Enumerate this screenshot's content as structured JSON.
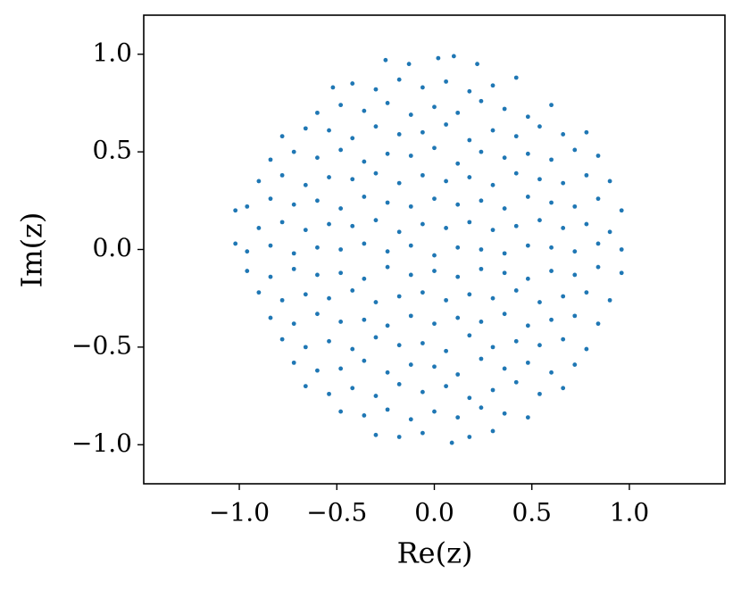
{
  "chart_data": {
    "type": "scatter",
    "x_label": "Re(z)",
    "y_label": "Im(z)",
    "color": "#1f77b4",
    "xlim": [
      -1.49,
      1.49
    ],
    "ylim": [
      -1.2,
      1.2
    ],
    "xticks": [
      {
        "value": -1.0,
        "label": "−1.0"
      },
      {
        "value": -0.5,
        "label": "−0.5"
      },
      {
        "value": 0.0,
        "label": "0.0"
      },
      0.5,
      {
        "value": 1.0,
        "label": "1.0"
      }
    ],
    "yticks": [
      {
        "value": -1.0,
        "label": "−1.0"
      },
      {
        "value": -0.5,
        "label": "−0.5"
      },
      {
        "value": 0.0,
        "label": "0.0"
      },
      0.5,
      {
        "value": 1.0,
        "label": "1.0"
      }
    ],
    "x": [
      -0.25,
      -0.13,
      0.02,
      0.1,
      0.22,
      -0.52,
      -0.42,
      -0.3,
      -0.18,
      -0.06,
      0.06,
      0.18,
      0.3,
      0.42,
      -0.6,
      -0.48,
      -0.36,
      -0.24,
      -0.12,
      0.0,
      0.12,
      0.24,
      0.36,
      0.48,
      0.6,
      -0.78,
      -0.66,
      -0.54,
      -0.42,
      -0.3,
      -0.18,
      -0.06,
      0.06,
      0.18,
      0.3,
      0.42,
      0.54,
      0.66,
      0.78,
      -0.84,
      -0.72,
      -0.6,
      -0.48,
      -0.36,
      -0.24,
      -0.12,
      0.0,
      0.12,
      0.24,
      0.36,
      0.48,
      0.6,
      0.72,
      0.84,
      -0.9,
      -0.78,
      -0.66,
      -0.54,
      -0.42,
      -0.3,
      -0.18,
      -0.06,
      0.06,
      0.18,
      0.3,
      0.42,
      0.54,
      0.66,
      0.78,
      0.9,
      -1.02,
      -0.96,
      -0.84,
      -0.72,
      -0.6,
      -0.48,
      -0.36,
      -0.24,
      -0.12,
      0.0,
      0.12,
      0.24,
      0.36,
      0.48,
      0.6,
      0.72,
      0.84,
      0.96,
      -0.9,
      -0.78,
      -0.66,
      -0.54,
      -0.42,
      -0.3,
      -0.18,
      -0.06,
      0.06,
      0.18,
      0.3,
      0.42,
      0.54,
      0.66,
      0.78,
      0.9,
      -1.02,
      -0.96,
      -0.84,
      -0.72,
      -0.6,
      -0.48,
      -0.36,
      -0.24,
      -0.12,
      0.0,
      0.12,
      0.24,
      0.36,
      0.48,
      0.6,
      0.72,
      0.84,
      0.96,
      -0.96,
      -0.84,
      -0.72,
      -0.6,
      -0.48,
      -0.36,
      -0.24,
      -0.12,
      0.0,
      0.12,
      0.24,
      0.36,
      0.48,
      0.6,
      0.72,
      0.84,
      0.96,
      -0.9,
      -0.78,
      -0.66,
      -0.54,
      -0.42,
      -0.3,
      -0.18,
      -0.06,
      0.06,
      0.18,
      0.3,
      0.42,
      0.54,
      0.66,
      0.78,
      0.9,
      -0.84,
      -0.72,
      -0.6,
      -0.48,
      -0.36,
      -0.24,
      -0.12,
      0.0,
      0.12,
      0.24,
      0.36,
      0.48,
      0.6,
      0.72,
      0.84,
      -0.78,
      -0.66,
      -0.54,
      -0.42,
      -0.3,
      -0.18,
      -0.06,
      0.06,
      0.18,
      0.3,
      0.42,
      0.54,
      0.66,
      0.78,
      -0.72,
      -0.6,
      -0.48,
      -0.36,
      -0.24,
      -0.12,
      0.0,
      0.12,
      0.24,
      0.36,
      0.48,
      0.6,
      0.72,
      -0.66,
      -0.54,
      -0.42,
      -0.3,
      -0.18,
      -0.06,
      0.06,
      0.18,
      0.3,
      0.42,
      0.54,
      0.66,
      -0.48,
      -0.36,
      -0.24,
      -0.12,
      0.0,
      0.12,
      0.24,
      0.36,
      0.48,
      -0.3,
      -0.18,
      -0.06,
      0.09,
      0.18,
      0.3
    ],
    "values": [
      0.97,
      0.95,
      0.98,
      0.99,
      0.95,
      0.83,
      0.85,
      0.82,
      0.87,
      0.83,
      0.86,
      0.81,
      0.84,
      0.88,
      0.7,
      0.74,
      0.71,
      0.75,
      0.69,
      0.73,
      0.7,
      0.76,
      0.72,
      0.68,
      0.74,
      0.58,
      0.62,
      0.61,
      0.57,
      0.63,
      0.59,
      0.6,
      0.64,
      0.56,
      0.61,
      0.58,
      0.63,
      0.59,
      0.6,
      0.46,
      0.5,
      0.47,
      0.51,
      0.45,
      0.49,
      0.48,
      0.52,
      0.44,
      0.5,
      0.47,
      0.49,
      0.46,
      0.51,
      0.48,
      0.35,
      0.38,
      0.33,
      0.37,
      0.36,
      0.39,
      0.34,
      0.38,
      0.35,
      0.37,
      0.33,
      0.39,
      0.36,
      0.34,
      0.38,
      0.35,
      0.2,
      0.22,
      0.26,
      0.23,
      0.25,
      0.21,
      0.27,
      0.24,
      0.22,
      0.26,
      0.23,
      0.25,
      0.21,
      0.27,
      0.24,
      0.22,
      0.26,
      0.2,
      0.11,
      0.14,
      0.1,
      0.13,
      0.12,
      0.15,
      0.09,
      0.13,
      0.11,
      0.14,
      0.1,
      0.12,
      0.15,
      0.11,
      0.13,
      0.09,
      0.03,
      -0.01,
      0.02,
      -0.02,
      0.01,
      0.0,
      0.03,
      -0.01,
      0.02,
      -0.03,
      0.01,
      0.0,
      -0.02,
      0.02,
      0.01,
      -0.01,
      0.03,
      0.0,
      -0.11,
      -0.14,
      -0.1,
      -0.13,
      -0.12,
      -0.15,
      -0.09,
      -0.13,
      -0.11,
      -0.14,
      -0.1,
      -0.12,
      -0.15,
      -0.11,
      -0.13,
      -0.09,
      -0.12,
      -0.22,
      -0.26,
      -0.23,
      -0.25,
      -0.21,
      -0.27,
      -0.24,
      -0.22,
      -0.26,
      -0.23,
      -0.25,
      -0.21,
      -0.27,
      -0.24,
      -0.22,
      -0.26,
      -0.35,
      -0.38,
      -0.33,
      -0.37,
      -0.36,
      -0.39,
      -0.34,
      -0.38,
      -0.35,
      -0.37,
      -0.33,
      -0.39,
      -0.36,
      -0.34,
      -0.38,
      -0.46,
      -0.5,
      -0.47,
      -0.51,
      -0.45,
      -0.49,
      -0.48,
      -0.52,
      -0.44,
      -0.5,
      -0.47,
      -0.49,
      -0.46,
      -0.51,
      -0.58,
      -0.62,
      -0.61,
      -0.57,
      -0.63,
      -0.59,
      -0.6,
      -0.64,
      -0.56,
      -0.61,
      -0.58,
      -0.63,
      -0.59,
      -0.7,
      -0.74,
      -0.71,
      -0.75,
      -0.69,
      -0.73,
      -0.7,
      -0.76,
      -0.72,
      -0.68,
      -0.74,
      -0.71,
      -0.83,
      -0.85,
      -0.82,
      -0.87,
      -0.83,
      -0.86,
      -0.81,
      -0.84,
      -0.86,
      -0.95,
      -0.96,
      -0.94,
      -0.99,
      -0.96,
      -0.93
    ]
  }
}
